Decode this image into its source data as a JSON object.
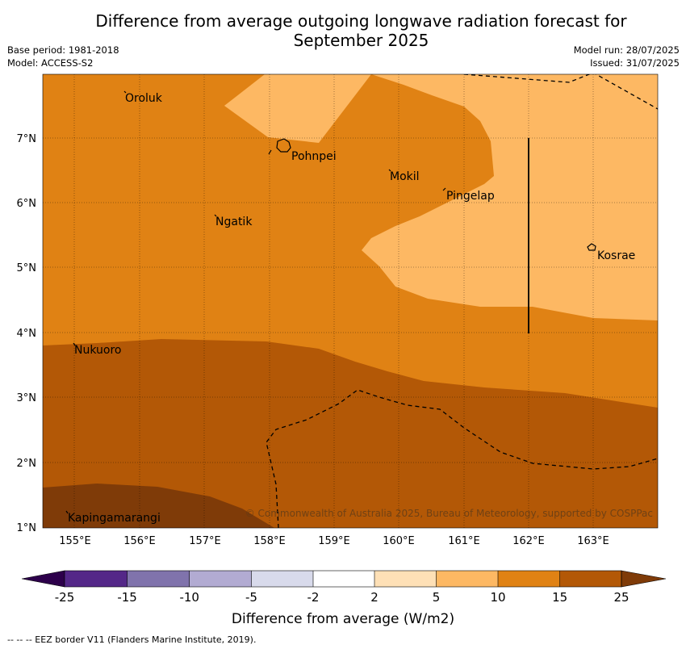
{
  "title_line1": "Difference from average outgoing longwave radiation forecast for",
  "title_line2": "September 2025",
  "meta": {
    "base_period": "Base period: 1981-2018",
    "model": "Model: ACCESS-S2",
    "model_run": "Model run: 28/07/2025",
    "issued": "Issued: 31/07/2025"
  },
  "colors": {
    "c_25_plus": "#7f3b08",
    "c_15_25": "#b35806",
    "c_10_15": "#e08214",
    "c_5_10": "#fdb863",
    "c_2_5": "#fee0b6",
    "c_neutral": "#ffffff",
    "c_m5_m2": "#d8daeb",
    "c_m10_m5": "#b2abd2",
    "c_m15_m10": "#8073ac",
    "c_m25_m15": "#542788",
    "c_lt_m25": "#2d004b"
  },
  "places": {
    "oroluk": "Oroluk",
    "pohnpei": "Pohnpei",
    "mokil": "Mokil",
    "pingelap": "Pingelap",
    "ngatik": "Ngatik",
    "kosrae": "Kosrae",
    "nukuoro": "Nukuoro",
    "kapingamarangi": "Kapingamarangi"
  },
  "lat_labels": [
    "7°N",
    "6°N",
    "5°N",
    "4°N",
    "3°N",
    "2°N",
    "1°N"
  ],
  "lon_labels": [
    "155°E",
    "156°E",
    "157°E",
    "158°E",
    "159°E",
    "160°E",
    "161°E",
    "162°E",
    "163°E"
  ],
  "copyright": "© Commonwealth of Australia 2025, Bureau of Meteorology, supported by COSPPac",
  "colorbar": {
    "ticks": [
      "-25",
      "-15",
      "-10",
      "-5",
      "-2",
      "2",
      "5",
      "10",
      "15",
      "25"
    ],
    "title": "Difference from average (W/m2)"
  },
  "footnote": "--  --  -- EEZ border V11 (Flanders Marine Institute, 2019)."
}
